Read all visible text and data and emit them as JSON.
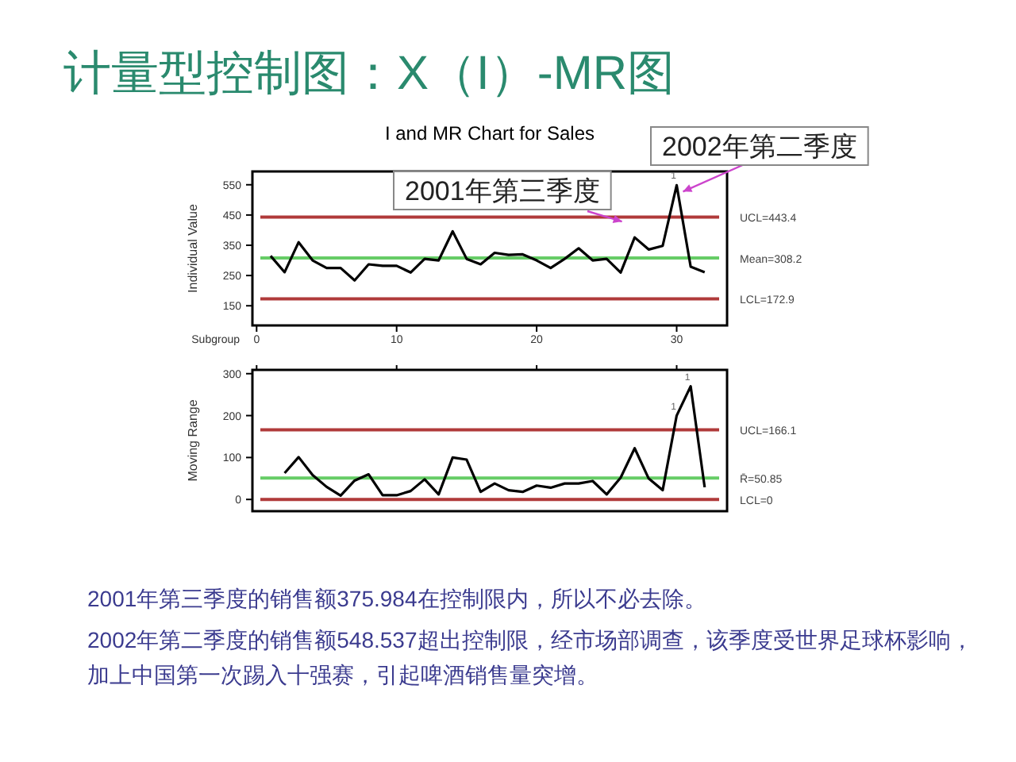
{
  "chart_data": [
    {
      "type": "other",
      "title": "计量型控制图：X（I）-MR图",
      "color": "#2a8a6e"
    },
    {
      "type": "line",
      "title": "I and MR Chart for Sales",
      "xlabel": "Subgroup",
      "ylabel": "Individual Value",
      "xlim": [
        -0.3,
        33.6
      ],
      "ylim": [
        85,
        594
      ],
      "xticks": [
        0,
        10,
        20,
        30
      ],
      "yticks": [
        150,
        250,
        350,
        450,
        550
      ],
      "grid": false,
      "marker": "none",
      "line_style": "solid",
      "series": [
        {
          "color": "#000000",
          "x": [
            1,
            2,
            3,
            4,
            5,
            6,
            7,
            8,
            9,
            10,
            11,
            12,
            13,
            14,
            15,
            16,
            17,
            18,
            19,
            20,
            21,
            22,
            23,
            24,
            25,
            26,
            27,
            28,
            29,
            30,
            31,
            32
          ],
          "values": [
            315,
            261,
            360,
            300,
            275,
            275,
            234,
            287,
            282,
            282,
            260,
            305,
            300,
            396,
            305,
            287,
            325,
            318,
            320,
            300,
            275,
            305,
            340,
            300,
            305,
            260,
            375.984,
            336,
            348,
            548.537,
            279,
            261
          ]
        }
      ],
      "ref_lines": [
        {
          "axis": "y",
          "value": 443.4,
          "label": "UCL=443.4",
          "color": "#b03a3a"
        },
        {
          "axis": "y",
          "value": 308.2,
          "label": "Mean=308.2",
          "color": "#66cc66"
        },
        {
          "axis": "y",
          "value": 172.9,
          "label": "LCL=172.9",
          "color": "#b03a3a"
        }
      ],
      "annotations": [
        {
          "text": "2001年第三季度",
          "x": 27,
          "y": 375.984
        },
        {
          "text": "2002年第二季度",
          "x": 30,
          "y": 548.537
        },
        {
          "text": "1",
          "x": 30,
          "y": 548.537
        }
      ]
    },
    {
      "type": "line",
      "ylabel": "Moving Range",
      "xlim": [
        -0.3,
        33.6
      ],
      "ylim": [
        -28,
        309
      ],
      "xticks": [
        0,
        10,
        20,
        30
      ],
      "yticks": [
        0,
        100,
        200,
        300
      ],
      "tick_labels": "y",
      "grid": false,
      "marker": "none",
      "line_style": "solid",
      "series": [
        {
          "color": "#000000",
          "x": [
            2,
            3,
            4,
            5,
            6,
            7,
            8,
            9,
            10,
            11,
            12,
            13,
            14,
            15,
            16,
            17,
            18,
            19,
            20,
            21,
            22,
            23,
            24,
            25,
            26,
            27,
            28,
            29,
            30,
            31,
            32
          ],
          "values": [
            63,
            101,
            58,
            30,
            9,
            45,
            60,
            10,
            10,
            20,
            48,
            12,
            100,
            95,
            18,
            38,
            22,
            18,
            33,
            28,
            38,
            38,
            44,
            12,
            52,
            122,
            50,
            22,
            200,
            270,
            29
          ]
        }
      ],
      "ref_lines": [
        {
          "axis": "y",
          "value": 166.1,
          "label": "UCL=166.1",
          "color": "#b03a3a"
        },
        {
          "axis": "y",
          "value": 50.85,
          "label": "R̄=50.85",
          "color": "#66cc66"
        },
        {
          "axis": "y",
          "value": 0,
          "label": "LCL=0",
          "color": "#b03a3a"
        }
      ],
      "annotations": [
        {
          "text": "1",
          "x": 30,
          "y": 200
        },
        {
          "text": "1",
          "x": 31,
          "y": 270
        }
      ]
    },
    {
      "type": "other",
      "color": "#3b3b8f",
      "annotations": [
        "2001年第三季度的销售额375.984在控制限内，所以不必去除。",
        "2002年第二季度的销售额548.537超出控制限，经市场部调查，该季度受世界足球杯影响，加上中国第一次踢入十强赛，引起啤酒销售量突增。"
      ]
    }
  ]
}
